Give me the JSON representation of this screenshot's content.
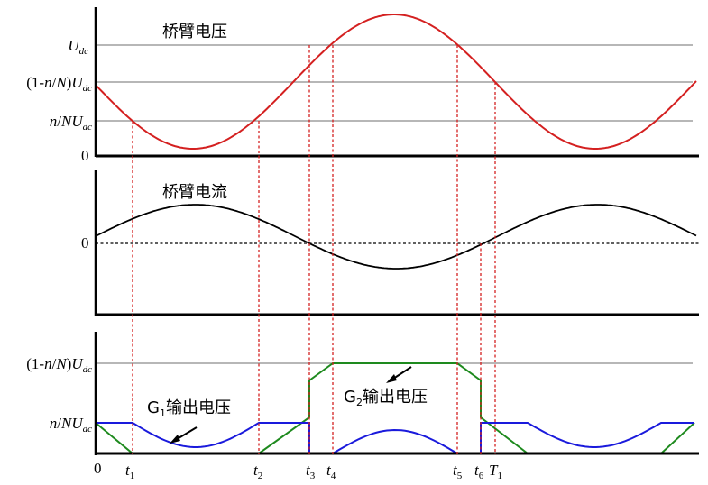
{
  "panels": {
    "voltage": {
      "title": "桥臂电压",
      "y_labels": {
        "udc": "U_dc",
        "upper_level": "(1-n/N)U_dc",
        "lower_level": "n/NU_dc",
        "zero": "0"
      }
    },
    "current": {
      "title": "桥臂电流",
      "y_labels": {
        "zero": "0"
      }
    },
    "gate": {
      "y_labels": {
        "upper_level": "(1-n/N)U_dc",
        "lower_level": "n/NU_dc"
      },
      "g1_label": "G1输出电压",
      "g2_label": "G2输出电压"
    }
  },
  "time_labels": [
    "0",
    "t1",
    "t2",
    "t3",
    "t4",
    "t5",
    "t6",
    "T1"
  ],
  "colors": {
    "voltage_curve": "#d42020",
    "current_curve": "#000000",
    "g1_curve": "#1a1adc",
    "g2_curve": "#1e8a1e",
    "grid": "#8c8c8c",
    "marker_line": "#d42020"
  }
}
